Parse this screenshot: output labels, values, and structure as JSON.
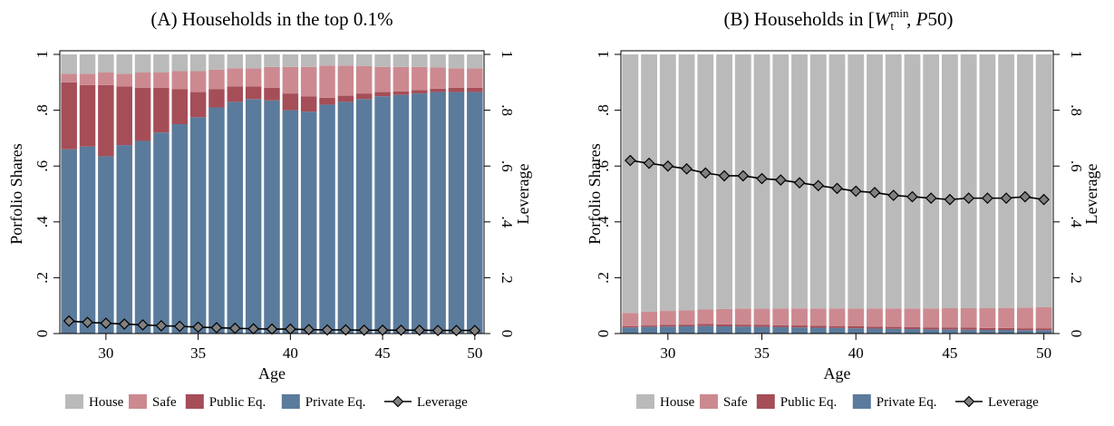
{
  "chart_data": [
    {
      "id": "A",
      "type": "bar",
      "subtype": "stacked-bar-with-line",
      "title_prefix": "(A)",
      "title_text": "Households in the top 0.1%",
      "xlabel": "Age",
      "ylabel": "Porfolio Shares",
      "ylabel_right": "Leverage",
      "x": [
        28,
        29,
        30,
        31,
        32,
        33,
        34,
        35,
        36,
        37,
        38,
        39,
        40,
        41,
        42,
        43,
        44,
        45,
        46,
        47,
        48,
        49,
        50
      ],
      "xlim": [
        27.5,
        50.5
      ],
      "xticks": [
        "30",
        "35",
        "40",
        "45",
        "50"
      ],
      "ylim": [
        0,
        1
      ],
      "yticks": [
        "0",
        ".2",
        ".4",
        ".6",
        ".8",
        "1"
      ],
      "grid": false,
      "legend_position": "bottom",
      "series": [
        {
          "name": "Private Eq.",
          "color": "#5b7b9c",
          "values": [
            0.66,
            0.67,
            0.635,
            0.675,
            0.69,
            0.72,
            0.75,
            0.775,
            0.81,
            0.83,
            0.84,
            0.835,
            0.8,
            0.795,
            0.82,
            0.83,
            0.84,
            0.85,
            0.855,
            0.86,
            0.865,
            0.865,
            0.865
          ]
        },
        {
          "name": "Public Eq.",
          "color": "#a54e58",
          "values": [
            0.24,
            0.22,
            0.255,
            0.21,
            0.19,
            0.16,
            0.125,
            0.09,
            0.065,
            0.055,
            0.045,
            0.045,
            0.06,
            0.055,
            0.025,
            0.022,
            0.02,
            0.015,
            0.012,
            0.012,
            0.012,
            0.015,
            0.015
          ]
        },
        {
          "name": "Safe",
          "color": "#cc8a90",
          "values": [
            0.03,
            0.04,
            0.045,
            0.045,
            0.055,
            0.055,
            0.065,
            0.075,
            0.07,
            0.065,
            0.065,
            0.075,
            0.095,
            0.105,
            0.115,
            0.108,
            0.098,
            0.09,
            0.088,
            0.083,
            0.076,
            0.07,
            0.07
          ]
        },
        {
          "name": "House",
          "color": "#bababa",
          "values": [
            0.07,
            0.07,
            0.065,
            0.07,
            0.065,
            0.065,
            0.06,
            0.06,
            0.055,
            0.05,
            0.05,
            0.045,
            0.045,
            0.045,
            0.04,
            0.04,
            0.042,
            0.045,
            0.045,
            0.045,
            0.047,
            0.05,
            0.05
          ]
        }
      ],
      "line": {
        "name": "Leverage",
        "color": "#808080",
        "values": [
          0.045,
          0.04,
          0.037,
          0.034,
          0.031,
          0.028,
          0.026,
          0.023,
          0.021,
          0.019,
          0.017,
          0.016,
          0.016,
          0.014,
          0.013,
          0.013,
          0.012,
          0.012,
          0.012,
          0.012,
          0.011,
          0.011,
          0.011
        ]
      }
    },
    {
      "id": "B",
      "type": "bar",
      "subtype": "stacked-bar-with-line",
      "title_prefix": "(B)",
      "title_text": "Households in [W_t^min, P50)",
      "xlabel": "Age",
      "ylabel": "Porfolio Shares",
      "ylabel_right": "Leverage",
      "x": [
        28,
        29,
        30,
        31,
        32,
        33,
        34,
        35,
        36,
        37,
        38,
        39,
        40,
        41,
        42,
        43,
        44,
        45,
        46,
        47,
        48,
        49,
        50
      ],
      "xlim": [
        27.5,
        50.5
      ],
      "xticks": [
        "30",
        "35",
        "40",
        "45",
        "50"
      ],
      "ylim": [
        0,
        1
      ],
      "yticks": [
        "0",
        ".2",
        ".4",
        ".6",
        ".8",
        "1"
      ],
      "grid": false,
      "legend_position": "bottom",
      "series": [
        {
          "name": "Private Eq.",
          "color": "#5b7b9c",
          "values": [
            0.022,
            0.024,
            0.025,
            0.026,
            0.027,
            0.026,
            0.025,
            0.024,
            0.023,
            0.022,
            0.021,
            0.02,
            0.019,
            0.018,
            0.017,
            0.016,
            0.015,
            0.015,
            0.014,
            0.013,
            0.013,
            0.012,
            0.012
          ]
        },
        {
          "name": "Public Eq.",
          "color": "#a54e58",
          "values": [
            0.004,
            0.005,
            0.006,
            0.006,
            0.007,
            0.007,
            0.007,
            0.007,
            0.007,
            0.007,
            0.007,
            0.007,
            0.007,
            0.007,
            0.007,
            0.007,
            0.007,
            0.007,
            0.007,
            0.007,
            0.007,
            0.007,
            0.007
          ]
        },
        {
          "name": "Safe",
          "color": "#cc8a90",
          "values": [
            0.048,
            0.049,
            0.05,
            0.051,
            0.052,
            0.055,
            0.057,
            0.058,
            0.06,
            0.061,
            0.062,
            0.063,
            0.064,
            0.065,
            0.066,
            0.067,
            0.068,
            0.069,
            0.07,
            0.071,
            0.072,
            0.074,
            0.076
          ]
        },
        {
          "name": "House",
          "color": "#bababa",
          "values": [
            0.926,
            0.922,
            0.919,
            0.917,
            0.914,
            0.912,
            0.911,
            0.911,
            0.91,
            0.91,
            0.91,
            0.91,
            0.91,
            0.91,
            0.91,
            0.91,
            0.91,
            0.909,
            0.909,
            0.909,
            0.908,
            0.907,
            0.905
          ]
        }
      ],
      "line": {
        "name": "Leverage",
        "color": "#808080",
        "values": [
          0.62,
          0.61,
          0.6,
          0.59,
          0.575,
          0.565,
          0.565,
          0.555,
          0.55,
          0.54,
          0.53,
          0.52,
          0.51,
          0.505,
          0.495,
          0.49,
          0.485,
          0.48,
          0.485,
          0.485,
          0.485,
          0.49,
          0.48
        ]
      }
    }
  ]
}
